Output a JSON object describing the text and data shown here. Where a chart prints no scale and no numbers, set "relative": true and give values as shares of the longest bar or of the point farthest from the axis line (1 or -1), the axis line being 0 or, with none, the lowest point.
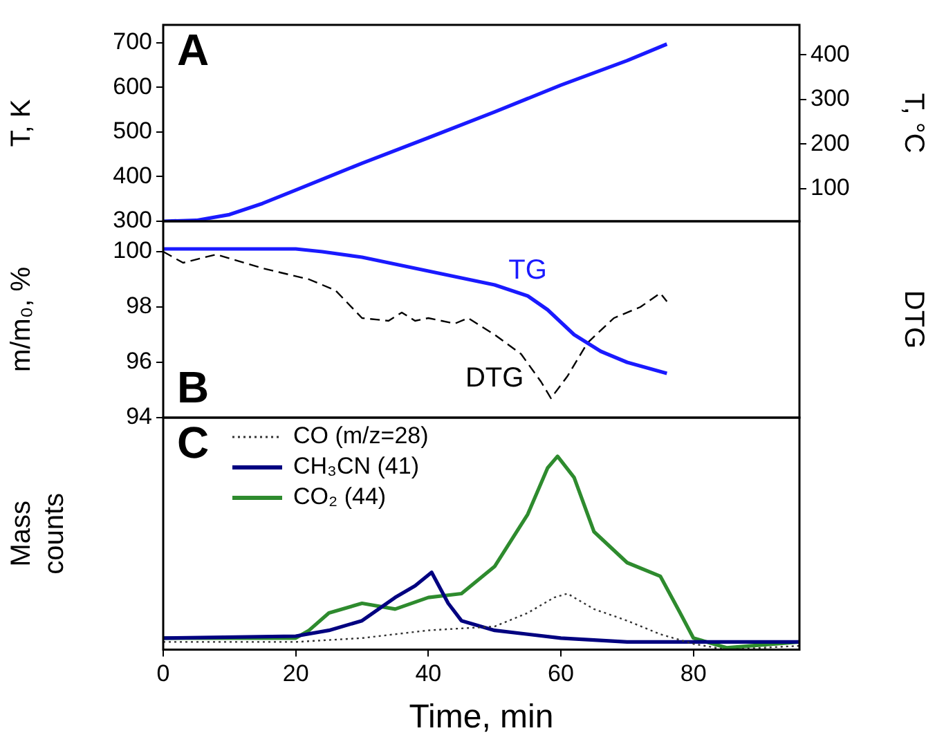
{
  "chart_data": [
    {
      "type": "line",
      "ylabel": "T, K",
      "y2label": "T, °C",
      "xlim": [
        0,
        96
      ],
      "ylim": [
        300,
        740
      ],
      "yticks": [
        300,
        400,
        500,
        600,
        700
      ],
      "y2lim": [
        26.85,
        466.85
      ],
      "y2ticks": [
        100,
        200,
        300,
        400
      ],
      "tick_labels": "y",
      "legend": false,
      "annotations": [
        "A"
      ],
      "series": [
        {
          "color": "#1a1aff",
          "x": [
            0,
            5,
            10,
            15,
            20,
            30,
            40,
            50,
            60,
            70,
            76
          ],
          "values": [
            300,
            302,
            315,
            340,
            370,
            430,
            487,
            545,
            605,
            660,
            697
          ]
        }
      ]
    },
    {
      "type": "line",
      "ylabel": "m/m₀, %",
      "y2label": "DTG",
      "xlim": [
        0,
        96
      ],
      "ylim": [
        94,
        101.1
      ],
      "yticks": [
        94,
        96,
        98,
        100
      ],
      "tick_labels": "y",
      "legend": false,
      "annotations": [
        "B"
      ],
      "series": [
        {
          "name": "TG",
          "color": "#1a1aff",
          "x": [
            0,
            10,
            20,
            24,
            30,
            40,
            50,
            55,
            58,
            62,
            66,
            70,
            76
          ],
          "values": [
            100.1,
            100.1,
            100.1,
            100.0,
            99.8,
            99.3,
            98.8,
            98.4,
            97.9,
            97.0,
            96.4,
            96.0,
            95.6
          ]
        },
        {
          "name": "DTG",
          "color": "#000000",
          "line_style": "dashed",
          "x": [
            0,
            3,
            8,
            15,
            22,
            26,
            30,
            34,
            36,
            38,
            40,
            44,
            46,
            50,
            54,
            57,
            58.5,
            61,
            64,
            68,
            72,
            75,
            76
          ],
          "values": [
            100.0,
            99.6,
            99.9,
            99.4,
            99.0,
            98.6,
            97.6,
            97.5,
            97.8,
            97.5,
            97.6,
            97.4,
            97.6,
            97.0,
            96.3,
            95.3,
            94.7,
            95.5,
            96.7,
            97.6,
            98.0,
            98.5,
            98.2
          ]
        }
      ]
    },
    {
      "type": "line",
      "relative": true,
      "ylabel": "Mass counts",
      "xlabel": "Time, min",
      "xlim": [
        0,
        96
      ],
      "xticks": [
        0,
        20,
        40,
        60,
        80
      ],
      "tick_labels": "x",
      "legend": "top left",
      "annotations": [
        "C"
      ],
      "series": [
        {
          "name": "CO (m/z=28)",
          "color": "#333333",
          "line_style": "dotted",
          "x": [
            0,
            20,
            30,
            40,
            50,
            55,
            59,
            61,
            65,
            70,
            75,
            80,
            85,
            96
          ],
          "values": [
            0.04,
            0.04,
            0.06,
            0.1,
            0.12,
            0.19,
            0.27,
            0.29,
            0.21,
            0.15,
            0.08,
            0.03,
            0,
            0.02
          ]
        },
        {
          "name": "CH₃CN (41)",
          "color": "#000080",
          "x": [
            0,
            20,
            25,
            30,
            35,
            38,
            40.5,
            43,
            45,
            50,
            55,
            60,
            70,
            96
          ],
          "values": [
            0.06,
            0.07,
            0.1,
            0.15,
            0.27,
            0.33,
            0.4,
            0.24,
            0.15,
            0.1,
            0.08,
            0.06,
            0.04,
            0.04
          ]
        },
        {
          "name": "CO₂ (44)",
          "color": "#2e8b2e",
          "x": [
            0,
            20,
            22,
            25,
            30,
            35,
            40,
            45,
            50,
            55,
            58,
            59.5,
            62,
            65,
            70,
            75,
            78,
            80,
            85,
            96
          ],
          "values": [
            0.06,
            0.06,
            0.1,
            0.19,
            0.24,
            0.21,
            0.27,
            0.29,
            0.43,
            0.7,
            0.94,
            1,
            0.89,
            0.61,
            0.45,
            0.38,
            0.19,
            0.06,
            0.01,
            0.04
          ]
        }
      ]
    }
  ]
}
